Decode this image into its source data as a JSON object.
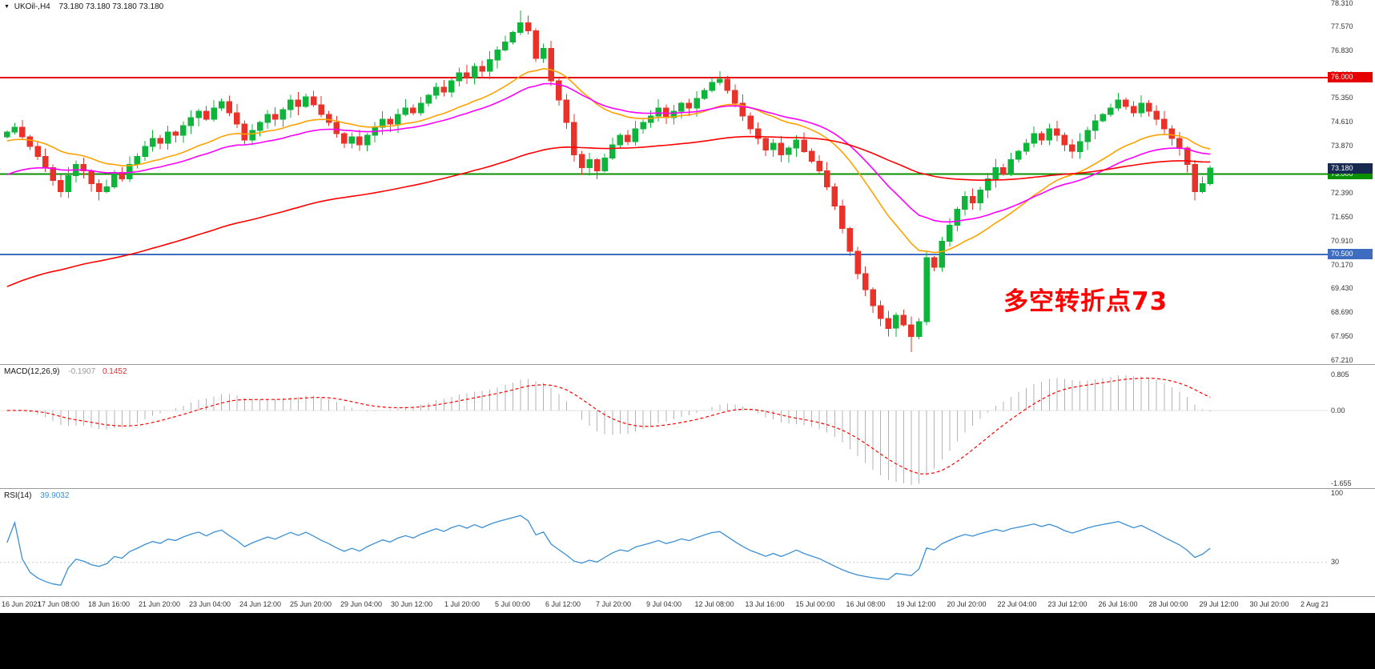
{
  "header": {
    "symbol_title": "UKOil-,H4",
    "ohlc_text": "73.180 73.180 73.180 73.180"
  },
  "chart_data": {
    "type": "candlestick",
    "symbol": "UKOil-",
    "timeframe": "H4",
    "price_axis": {
      "max": 78.31,
      "min": 67.21,
      "labels": [
        "78.310",
        "77.570",
        "76.830",
        "76.090",
        "75.350",
        "74.610",
        "73.870",
        "73.130",
        "72.390",
        "71.650",
        "70.910",
        "70.170",
        "69.430",
        "68.690",
        "67.950",
        "67.210"
      ]
    },
    "hlines": [
      {
        "price": 76.0,
        "label": "76.000",
        "color": "#e60000",
        "width": 2
      },
      {
        "price": 73.0,
        "label": "73.000",
        "color": "#089000",
        "width": 2
      },
      {
        "price": 70.5,
        "label": "70.500",
        "color": "#3d6cc0",
        "width": 2
      }
    ],
    "current_price_tag": {
      "value": 73.18,
      "label": "73.180",
      "bg": "#17294f"
    },
    "annotation": {
      "text": "多空转折点73",
      "color": "#ff0000"
    },
    "candles": {
      "up_color": "#0fb53a",
      "down_color": "#e8332a",
      "open_first": 74.15,
      "closes": [
        74.3,
        74.45,
        74.15,
        73.85,
        73.55,
        73.2,
        72.8,
        72.45,
        72.95,
        73.3,
        73.1,
        72.7,
        72.45,
        72.6,
        73.05,
        72.85,
        73.3,
        73.55,
        73.85,
        74.1,
        73.95,
        74.3,
        74.2,
        74.5,
        74.75,
        74.95,
        74.7,
        75.05,
        75.25,
        74.9,
        74.55,
        74.05,
        74.35,
        74.6,
        74.85,
        74.7,
        75.0,
        75.3,
        75.1,
        75.4,
        75.15,
        74.85,
        74.6,
        74.25,
        73.95,
        74.15,
        73.9,
        74.2,
        74.45,
        74.7,
        74.55,
        74.85,
        75.05,
        74.9,
        75.2,
        75.45,
        75.7,
        75.55,
        75.9,
        76.15,
        76.0,
        76.35,
        76.2,
        76.55,
        76.85,
        77.1,
        77.4,
        77.7,
        77.45,
        76.6,
        76.9,
        75.9,
        75.3,
        74.6,
        73.6,
        73.2,
        73.45,
        73.1,
        73.5,
        73.9,
        74.2,
        74.0,
        74.4,
        74.6,
        74.8,
        75.05,
        74.75,
        74.95,
        75.2,
        75.05,
        75.35,
        75.6,
        75.85,
        75.95,
        75.6,
        75.2,
        74.8,
        74.4,
        74.1,
        73.75,
        73.95,
        73.6,
        73.8,
        74.05,
        73.7,
        73.4,
        73.1,
        72.6,
        72.0,
        71.3,
        70.6,
        69.9,
        69.4,
        68.9,
        68.5,
        68.2,
        68.6,
        68.3,
        67.95,
        68.4,
        70.4,
        70.1,
        70.9,
        71.4,
        71.9,
        72.3,
        72.1,
        72.5,
        72.85,
        73.2,
        73.0,
        73.45,
        73.7,
        73.95,
        74.25,
        74.05,
        74.4,
        74.2,
        73.9,
        73.7,
        74.0,
        74.35,
        74.65,
        74.85,
        75.05,
        75.3,
        75.1,
        74.9,
        75.2,
        74.95,
        74.7,
        74.4,
        74.1,
        73.8,
        73.3,
        72.45,
        72.7,
        73.18
      ],
      "wick_overrides": [
        {
          "i": 67,
          "high": 78.08
        },
        {
          "i": 118,
          "low": 67.46
        }
      ]
    },
    "ma_lines": [
      {
        "name": "ma-fast",
        "period": 21,
        "seed": 74.0,
        "color": "#ffa200"
      },
      {
        "name": "ma-mid",
        "period": 34,
        "seed": 72.9,
        "color": "#ff00ff"
      },
      {
        "name": "ma-slow",
        "period": 100,
        "seed": 69.4,
        "color": "#ff0000"
      }
    ],
    "macd": {
      "label": "MACD(12,26,9)",
      "value_main": "-0.1907",
      "value_signal": "0.1452",
      "fast": 12,
      "slow": 26,
      "signal_period": 9,
      "hist_color": "#b3b3b3",
      "signal_color": "#ff0000",
      "axis": [
        {
          "label": "0.805",
          "value": 0.805
        },
        {
          "label": "0.00",
          "value": 0
        },
        {
          "label": "-1.655",
          "value": -1.655
        }
      ]
    },
    "rsi": {
      "label": "RSI(14)",
      "value": "39.9032",
      "period": 14,
      "color": "#3b8fd4",
      "axis": [
        {
          "label": "100",
          "value": 100
        },
        {
          "label": "30",
          "value": 30
        }
      ],
      "level_lines": [
        30
      ]
    },
    "time_axis": {
      "labels": [
        "16 Jun 2021",
        "17 Jun 08:00",
        "18 Jun 16:00",
        "21 Jun 20:00",
        "23 Jun 04:00",
        "24 Jun 12:00",
        "25 Jun 20:00",
        "29 Jun 04:00",
        "30 Jun 12:00",
        "1 Jul 20:00",
        "5 Jul 00:00",
        "6 Jul 12:00",
        "7 Jul 20:00",
        "9 Jul 04:00",
        "12 Jul 08:00",
        "13 Jul 16:00",
        "15 Jul 00:00",
        "16 Jul 08:00",
        "19 Jul 12:00",
        "20 Jul 20:00",
        "22 Jul 04:00",
        "23 Jul 12:00",
        "26 Jul 16:00",
        "28 Jul 00:00",
        "29 Jul 12:00",
        "30 Jul 20:00",
        "2 Aug 21:15"
      ]
    }
  }
}
